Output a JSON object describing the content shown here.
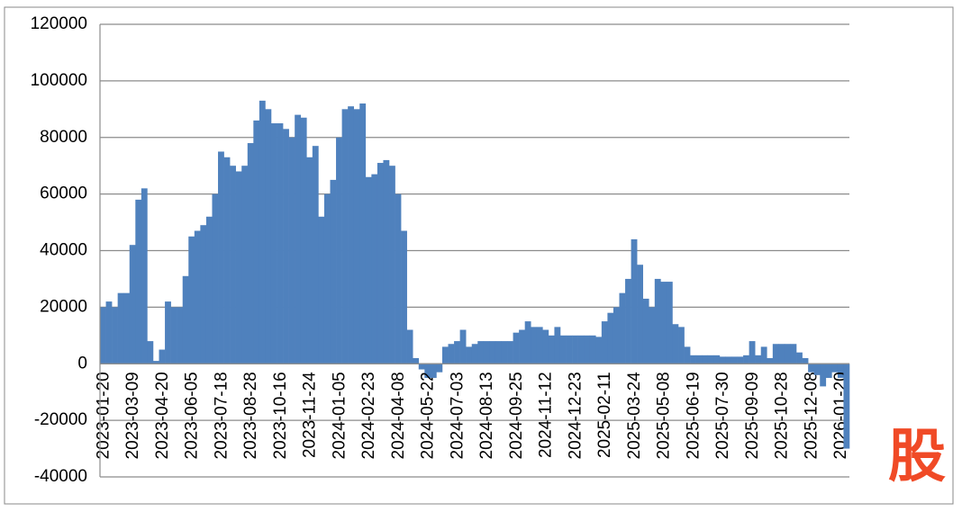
{
  "chart_data": {
    "type": "bar",
    "color": "#4f81bd",
    "grid": true,
    "ylim": [
      -40000,
      120000
    ],
    "yticks": [
      -40000,
      -20000,
      0,
      20000,
      40000,
      60000,
      80000,
      100000,
      120000
    ],
    "watermark": "股",
    "categories": [
      "2023-01-20",
      null,
      null,
      null,
      null,
      "2023-03-09",
      null,
      null,
      null,
      null,
      "2023-04-20",
      null,
      null,
      null,
      null,
      "2023-06-05",
      null,
      null,
      null,
      null,
      "2023-07-18",
      null,
      null,
      null,
      null,
      "2023-08-28",
      null,
      null,
      null,
      null,
      "2023-10-16",
      null,
      null,
      null,
      null,
      "2023-11-24",
      null,
      null,
      null,
      null,
      "2024-01-05",
      null,
      null,
      null,
      null,
      "2024-02-23",
      null,
      null,
      null,
      null,
      "2024-04-08",
      null,
      null,
      null,
      null,
      "2024-05-22",
      null,
      null,
      null,
      null,
      "2024-07-03",
      null,
      null,
      null,
      null,
      "2024-08-13",
      null,
      null,
      null,
      null,
      "2024-09-25",
      null,
      null,
      null,
      null,
      "2024-11-12",
      null,
      null,
      null,
      null,
      "2024-12-23",
      null,
      null,
      null,
      null,
      "2025-02-11",
      null,
      null,
      null,
      null,
      "2025-03-24",
      null,
      null,
      null,
      null,
      "2025-05-08",
      null,
      null,
      null,
      null,
      "2025-06-19",
      null,
      null,
      null,
      null,
      "2025-07-30",
      null,
      null,
      null,
      null,
      "2025-09-09",
      null,
      null,
      null,
      null,
      "2025-10-28",
      null,
      null,
      null,
      null,
      "2025-12-08",
      null,
      null,
      null,
      null,
      "2026-01-20",
      null
    ],
    "values": [
      20000,
      22000,
      20000,
      25000,
      25000,
      42000,
      58000,
      62000,
      8000,
      1000,
      5000,
      22000,
      20000,
      20000,
      31000,
      45000,
      47000,
      49000,
      52000,
      60000,
      75000,
      73000,
      70000,
      68000,
      70000,
      78000,
      86000,
      93000,
      90000,
      85000,
      85000,
      83000,
      80000,
      88000,
      87000,
      73000,
      77000,
      52000,
      60000,
      65000,
      80000,
      90000,
      91000,
      90000,
      92000,
      66000,
      67000,
      71000,
      72000,
      70000,
      60000,
      47000,
      12000,
      2000,
      -2000,
      -5000,
      -5000,
      -3000,
      6000,
      7000,
      8000,
      12000,
      6000,
      7000,
      8000,
      8000,
      8000,
      8000,
      8000,
      8000,
      11000,
      12000,
      15000,
      13000,
      13000,
      12000,
      10000,
      13000,
      10000,
      10000,
      10000,
      10000,
      10000,
      10000,
      9500,
      15000,
      18000,
      20000,
      25000,
      30000,
      44000,
      35000,
      23000,
      20000,
      30000,
      29000,
      29000,
      14000,
      13000,
      6000,
      3000,
      3000,
      3000,
      3000,
      3000,
      2500,
      2500,
      2500,
      2500,
      3000,
      8000,
      3000,
      6000,
      2000,
      7000,
      7000,
      7000,
      7000,
      4000,
      2000,
      -3000,
      -4000,
      -8000,
      -5000,
      -3000,
      -5000,
      -30000
    ]
  }
}
